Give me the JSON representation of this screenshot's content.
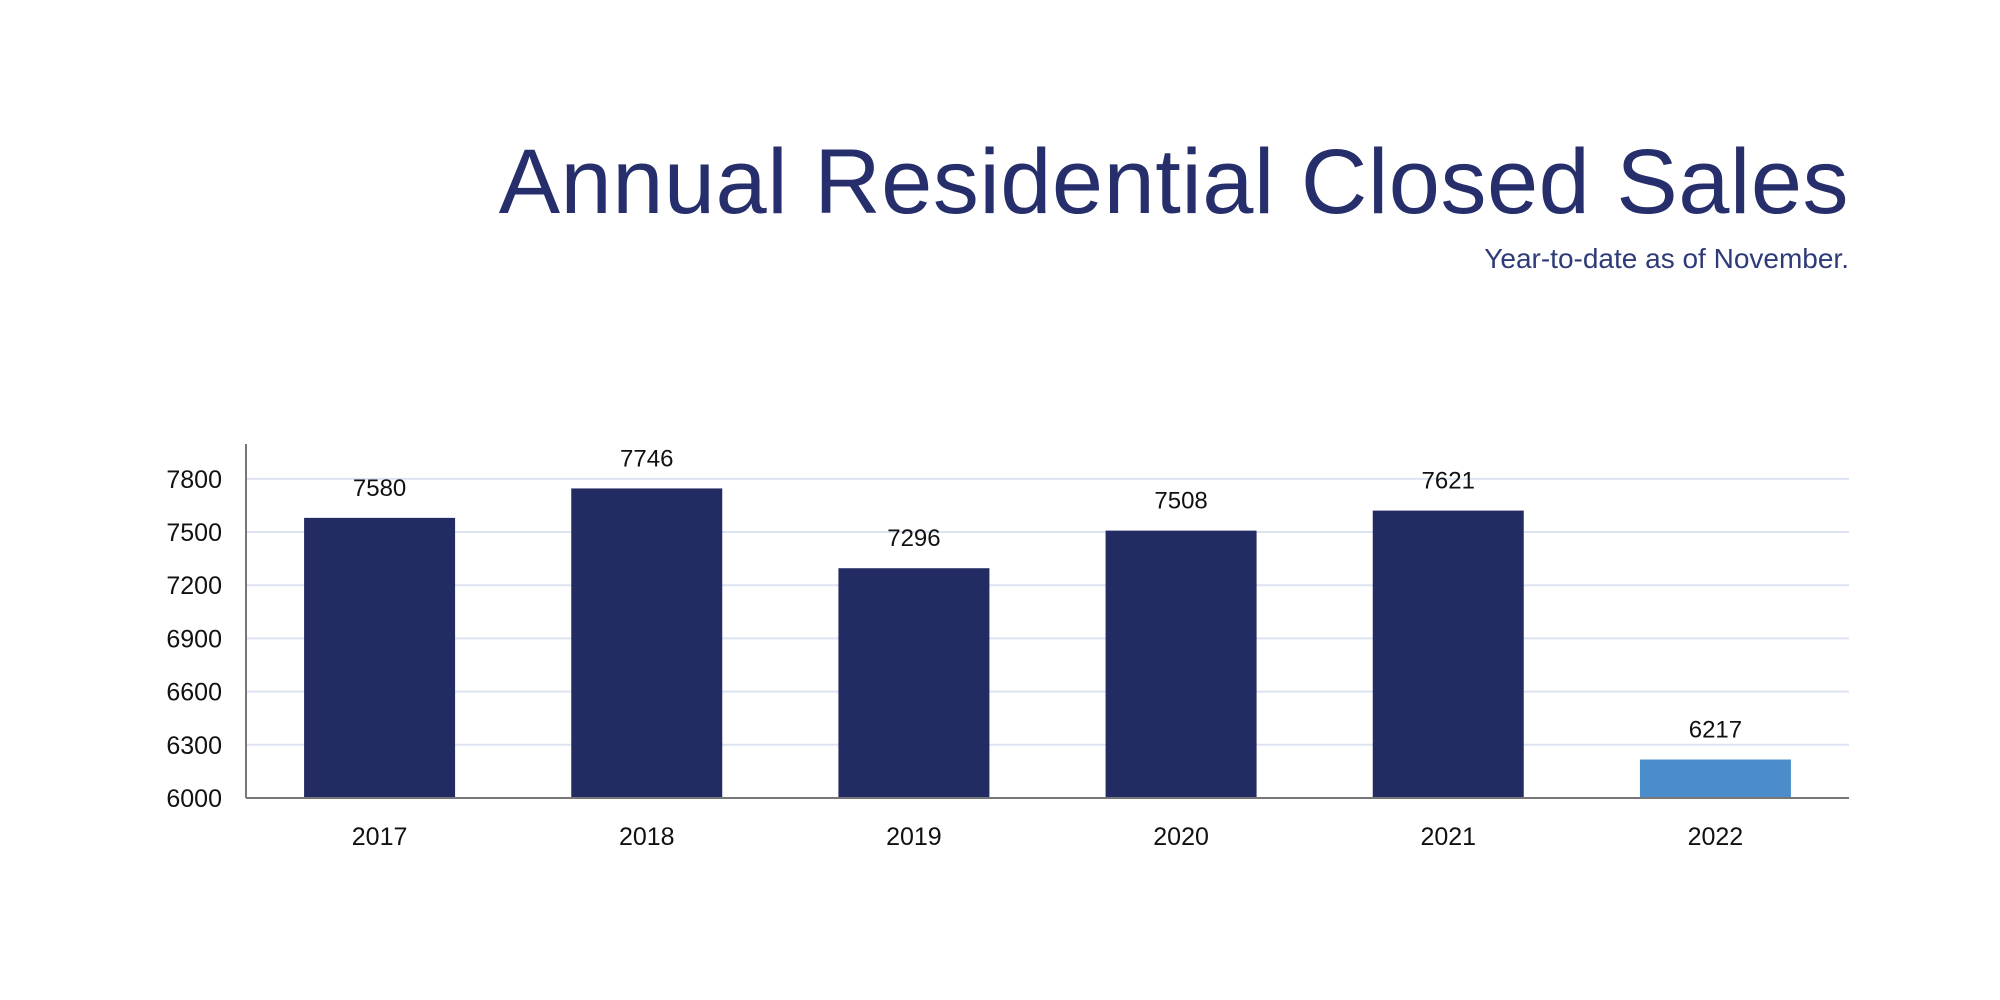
{
  "chart_data": {
    "type": "bar",
    "title": "Annual Residential Closed Sales",
    "subtitle": "Year-to-date as of November.",
    "categories": [
      "2017",
      "2018",
      "2019",
      "2020",
      "2021",
      "2022"
    ],
    "values": [
      7580,
      7746,
      7296,
      7508,
      7621,
      6217
    ],
    "data_labels": [
      "7580",
      "7746",
      "7296",
      "7508",
      "7621",
      "6217"
    ],
    "xlabel": "",
    "ylabel": "",
    "ylim": [
      6000,
      8000
    ],
    "yticks": [
      "6000",
      "6300",
      "6600",
      "6900",
      "7200",
      "7500",
      "7800"
    ],
    "grid": true,
    "legend": "none",
    "colors": {
      "bar": "#232b63",
      "highlight_bar": "#4a8dca",
      "grid": "#dde3f0",
      "title": "#262f6b"
    },
    "highlight_category": "2022"
  }
}
